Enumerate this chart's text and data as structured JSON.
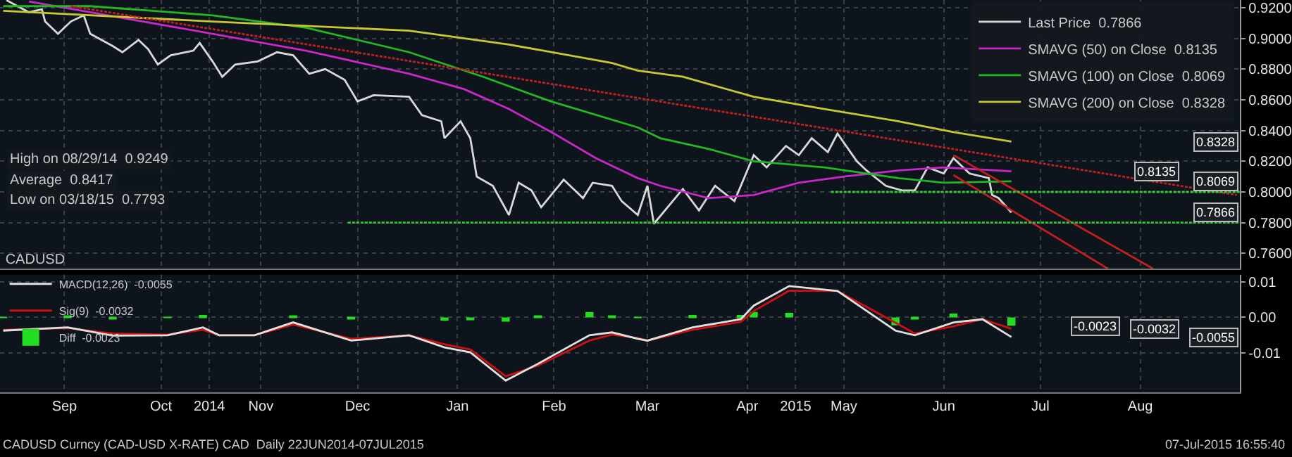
{
  "chart_data": [
    {
      "type": "line",
      "grid": true,
      "legend": "top right",
      "tick_labels": "y",
      "xlim": [
        "2014-08-27",
        "2015-09-16"
      ],
      "xticks": [
        {
          "value": "2014-09-16",
          "label": null
        },
        {
          "value": "2014-10-16",
          "label": null
        },
        {
          "value": "2014-10-31",
          "label": null
        },
        {
          "value": "2014-11-16",
          "label": null
        },
        {
          "value": "2014-12-16",
          "label": null
        },
        {
          "value": "2015-01-16",
          "label": null
        },
        {
          "value": "2015-02-15",
          "label": null
        },
        {
          "value": "2015-03-16",
          "label": null
        },
        {
          "value": "2015-04-16",
          "label": null
        },
        {
          "value": "2015-05-01",
          "label": null
        },
        {
          "value": "2015-05-16",
          "label": null
        },
        {
          "value": "2015-06-16",
          "label": null
        },
        {
          "value": "2015-07-16",
          "label": null
        },
        {
          "value": "2015-08-16",
          "label": null
        }
      ],
      "ylim": [
        0.75,
        0.925
      ],
      "yticks": [
        {
          "value": 0.76,
          "label": "0.7600"
        },
        {
          "value": 0.78,
          "label": "0.7800"
        },
        {
          "value": 0.8,
          "label": "0.8000"
        },
        {
          "value": 0.82,
          "label": "0.8200"
        },
        {
          "value": 0.84,
          "label": "0.8400"
        },
        {
          "value": 0.86,
          "label": "0.8600"
        },
        {
          "value": 0.88,
          "label": "0.8800"
        },
        {
          "value": 0.9,
          "label": "0.9000"
        },
        {
          "value": 0.92,
          "label": "0.9200"
        }
      ],
      "series": [
        {
          "name": "Last Price  0.7866",
          "color": "#d8d8d8",
          "x": [
            "2014-08-29",
            "2014-09-05",
            "2014-09-09",
            "2014-09-10",
            "2014-09-14",
            "2014-09-18",
            "2014-09-22",
            "2014-09-24",
            "2014-10-01",
            "2014-10-04",
            "2014-10-09",
            "2014-10-12",
            "2014-10-15",
            "2014-10-19",
            "2014-10-26",
            "2014-10-28",
            "2014-11-01",
            "2014-11-04",
            "2014-11-08",
            "2014-11-15",
            "2014-11-21",
            "2014-11-26",
            "2014-12-01",
            "2014-12-06",
            "2014-12-12",
            "2014-12-16",
            "2014-12-21",
            "2015-01-01",
            "2015-01-05",
            "2015-01-11",
            "2015-01-12",
            "2015-01-17",
            "2015-01-20",
            "2015-01-22",
            "2015-01-27",
            "2015-02-01",
            "2015-02-04",
            "2015-02-08",
            "2015-02-11",
            "2015-02-18",
            "2015-02-24",
            "2015-02-27",
            "2015-03-05",
            "2015-03-08",
            "2015-03-13",
            "2015-03-16",
            "2015-03-18",
            "2015-03-27",
            "2015-04-01",
            "2015-04-06",
            "2015-04-12",
            "2015-04-18",
            "2015-04-22",
            "2015-04-28",
            "2015-05-02",
            "2015-05-06",
            "2015-05-11",
            "2015-05-14",
            "2015-05-20",
            "2015-05-23",
            "2015-05-29",
            "2015-06-03",
            "2015-06-07",
            "2015-06-11",
            "2015-06-16",
            "2015-06-19",
            "2015-06-24",
            "2015-06-30",
            "2015-07-01",
            "2015-07-03",
            "2015-07-07"
          ],
          "values": [
            0.9249,
            0.917,
            0.919,
            0.911,
            0.903,
            0.911,
            0.915,
            0.903,
            0.895,
            0.891,
            0.899,
            0.893,
            0.883,
            0.889,
            0.892,
            0.897,
            0.885,
            0.875,
            0.883,
            0.885,
            0.891,
            0.889,
            0.877,
            0.88,
            0.873,
            0.859,
            0.863,
            0.862,
            0.85,
            0.846,
            0.835,
            0.846,
            0.835,
            0.81,
            0.804,
            0.785,
            0.806,
            0.801,
            0.79,
            0.808,
            0.796,
            0.806,
            0.804,
            0.794,
            0.785,
            0.804,
            0.7793,
            0.802,
            0.788,
            0.804,
            0.794,
            0.824,
            0.816,
            0.83,
            0.824,
            0.835,
            0.826,
            0.838,
            0.82,
            0.814,
            0.804,
            0.801,
            0.801,
            0.816,
            0.812,
            0.822,
            0.812,
            0.809,
            0.798,
            0.796,
            0.7866
          ]
        },
        {
          "name": "SMAVG (50) on Close  0.8135",
          "color": "#c828c8",
          "x": [
            "2014-09-05",
            "2014-09-24",
            "2014-11-01",
            "2014-11-30",
            "2015-01-01",
            "2015-01-18",
            "2015-02-01",
            "2015-02-15",
            "2015-02-28",
            "2015-03-13",
            "2015-03-20",
            "2015-04-04",
            "2015-04-18",
            "2015-05-02",
            "2015-05-16",
            "2015-06-02",
            "2015-06-16",
            "2015-07-07"
          ],
          "values": [
            0.924,
            0.917,
            0.903,
            0.892,
            0.877,
            0.867,
            0.854,
            0.838,
            0.822,
            0.809,
            0.804,
            0.796,
            0.798,
            0.806,
            0.81,
            0.814,
            0.816,
            0.8135
          ]
        },
        {
          "name": "SMAVG (100) on Close  0.8069",
          "color": "#22b822",
          "x": [
            "2014-08-28",
            "2014-09-24",
            "2014-11-01",
            "2014-11-30",
            "2015-01-01",
            "2015-01-24",
            "2015-02-14",
            "2015-03-13",
            "2015-03-20",
            "2015-04-04",
            "2015-04-18",
            "2015-05-10",
            "2015-06-02",
            "2015-06-16",
            "2015-07-07"
          ],
          "values": [
            0.921,
            0.921,
            0.915,
            0.907,
            0.891,
            0.875,
            0.859,
            0.842,
            0.835,
            0.828,
            0.82,
            0.816,
            0.809,
            0.806,
            0.8069
          ]
        },
        {
          "name": "SMAVG (200) on Close  0.8328",
          "color": "#c8c832",
          "x": [
            "2014-08-28",
            "2014-11-01",
            "2015-01-01",
            "2015-02-01",
            "2015-03-05",
            "2015-03-13",
            "2015-03-27",
            "2015-04-18",
            "2015-05-10",
            "2015-06-02",
            "2015-06-19",
            "2015-07-07"
          ],
          "values": [
            0.918,
            0.911,
            0.905,
            0.896,
            0.884,
            0.879,
            0.875,
            0.862,
            0.854,
            0.846,
            0.839,
            0.8328
          ]
        },
        {
          "color": "#c02020",
          "line_style": "dotted",
          "x": [
            "2014-09-18",
            "2015-09-15"
          ],
          "values": [
            0.921,
            0.798
          ]
        },
        {
          "color": "#c02020",
          "x": [
            "2015-06-19",
            "2015-08-20"
          ],
          "values": [
            0.824,
            0.75
          ]
        },
        {
          "color": "#c02020",
          "x": [
            "2015-06-19",
            "2015-08-06"
          ],
          "values": [
            0.811,
            0.75
          ]
        },
        {
          "color": "#33cc33",
          "line_style": "dotted",
          "x": [
            "2014-12-13",
            "2015-09-16"
          ],
          "values": [
            0.78,
            0.78
          ]
        },
        {
          "color": "#33cc33",
          "line_style": "dotted",
          "x": [
            "2015-05-12",
            "2015-09-16"
          ],
          "values": [
            0.8,
            0.8
          ]
        }
      ],
      "annotations": [
        "High on 08/29/14  0.9249",
        "Average  0.8417",
        "Low on 03/18/15  0.7793",
        {
          "text": "0.8328",
          "y": 0.8328
        },
        {
          "text": "0.8135",
          "y": 0.8135
        },
        {
          "text": "0.8069",
          "y": 0.8069
        },
        {
          "text": "0.7866",
          "y": 0.7866
        }
      ]
    },
    {
      "type": "line",
      "grid": true,
      "legend": "top left",
      "legend_title": "CADUSD",
      "xlim": [
        "2014-08-27",
        "2015-09-16"
      ],
      "xticks": [
        {
          "value": "2014-09-16",
          "label": "Sep"
        },
        {
          "value": "2014-10-16",
          "label": "Oct"
        },
        {
          "value": "2014-10-31",
          "label": "2014"
        },
        {
          "value": "2014-11-16",
          "label": "Nov"
        },
        {
          "value": "2014-12-16",
          "label": "Dec"
        },
        {
          "value": "2015-01-16",
          "label": "Jan"
        },
        {
          "value": "2015-02-15",
          "label": "Feb"
        },
        {
          "value": "2015-03-16",
          "label": "Mar"
        },
        {
          "value": "2015-04-16",
          "label": "Apr"
        },
        {
          "value": "2015-05-01",
          "label": "2015"
        },
        {
          "value": "2015-05-16",
          "label": "May"
        },
        {
          "value": "2015-06-16",
          "label": "Jun"
        },
        {
          "value": "2015-07-16",
          "label": "Jul"
        },
        {
          "value": "2015-08-16",
          "label": "Aug"
        }
      ],
      "ylim": [
        -0.021,
        0.012
      ],
      "yticks": [
        {
          "value": -0.01,
          "label": "-0.01"
        },
        {
          "value": 0,
          "label": "0.00"
        },
        {
          "value": 0.01,
          "label": "0.01"
        }
      ],
      "x": [
        "2014-08-28",
        "2014-09-17",
        "2014-10-01",
        "2014-10-18",
        "2014-10-29",
        "2014-11-03",
        "2014-11-14",
        "2014-11-26",
        "2014-12-14",
        "2015-01-01",
        "2015-01-12",
        "2015-01-20",
        "2015-01-31",
        "2015-02-10",
        "2015-02-26",
        "2015-03-05",
        "2015-03-13",
        "2015-03-16",
        "2015-03-30",
        "2015-04-14",
        "2015-04-18",
        "2015-04-29",
        "2015-05-14",
        "2015-06-01",
        "2015-06-07",
        "2015-06-19",
        "2015-06-28",
        "2015-07-07"
      ],
      "series": [
        {
          "name": "Diff  -0.0023",
          "type": "bar",
          "color": "#22dd22",
          "values": [
            -0.0002,
            0.0002,
            -0.0006,
            -0.0002,
            0.0007,
            0.0,
            0.0,
            0.0006,
            -0.0005,
            0.0,
            -0.0009,
            -0.0008,
            -0.0012,
            0.0005,
            0.0015,
            0.0006,
            -0.0002,
            0.0,
            0.0007,
            0.0007,
            0.0015,
            0.0013,
            0.0,
            -0.0022,
            -0.0005,
            0.0011,
            0.0,
            -0.0023
          ]
        },
        {
          "name": "Sig(9)  -0.0032",
          "color": "#cc1111",
          "values": [
            -0.0035,
            -0.003,
            -0.0045,
            -0.0048,
            -0.0035,
            -0.005,
            -0.005,
            -0.002,
            -0.006,
            -0.005,
            -0.0075,
            -0.009,
            -0.0165,
            -0.0135,
            -0.0065,
            -0.0048,
            -0.0058,
            -0.0065,
            -0.0035,
            -0.0012,
            0.0018,
            0.0075,
            0.0074,
            -0.0015,
            -0.0045,
            -0.0025,
            -0.0005,
            -0.0032
          ]
        },
        {
          "name": "MACD(12,26)  -0.0055",
          "color": "#e0e0e0",
          "values": [
            -0.0037,
            -0.0028,
            -0.0051,
            -0.005,
            -0.0028,
            -0.005,
            -0.005,
            -0.0014,
            -0.0065,
            -0.005,
            -0.0084,
            -0.0098,
            -0.0177,
            -0.013,
            -0.005,
            -0.0042,
            -0.006,
            -0.0065,
            -0.0028,
            -0.0005,
            0.0033,
            0.0088,
            0.0074,
            -0.0037,
            -0.005,
            -0.0014,
            -0.0005,
            -0.0055
          ]
        }
      ],
      "annotations": [
        "CADUSD Curncy (CAD-USD X-RATE) CAD  Daily 22JUN2014-07JUL2015",
        "07-Jul-2015 16:55:40",
        {
          "text": "-0.0023",
          "y": -0.0023
        },
        {
          "text": "-0.0032",
          "y": -0.0032
        },
        {
          "text": "-0.0055",
          "y": -0.0055
        }
      ]
    }
  ]
}
